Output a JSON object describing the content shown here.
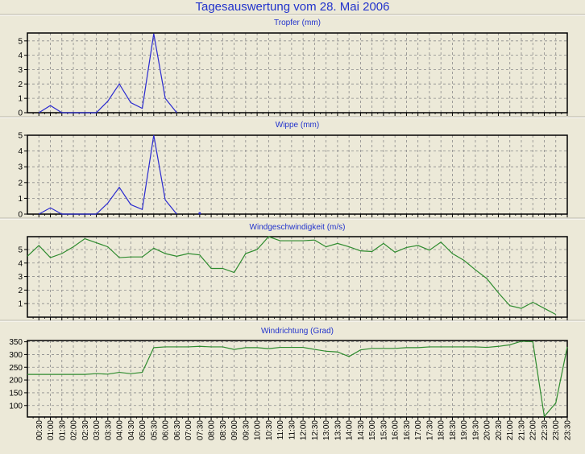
{
  "title": "Tagesauswertung vom 28. Mai 2006",
  "colors": {
    "background": "#ECE9D8",
    "title": "#2233cc",
    "rain": "#2a2ad0",
    "wind": "#2e8b2e",
    "grid": "#8a8a8a"
  },
  "chart_data": [
    {
      "type": "line",
      "title": "Tropfer (mm)",
      "ylim": [
        0,
        5.55
      ],
      "yticks": [
        0,
        1,
        2,
        3,
        4,
        5
      ],
      "grid": true,
      "x": [
        "00:00",
        "00:30",
        "01:00",
        "01:30",
        "02:00",
        "02:30",
        "03:00",
        "03:30",
        "04:00",
        "04:30",
        "05:00",
        "05:30",
        "06:00",
        "06:30",
        "07:00",
        "07:30",
        "08:00",
        "08:30",
        "09:00",
        "09:30",
        "10:00",
        "10:30",
        "11:00",
        "11:30",
        "12:00",
        "12:30",
        "13:00",
        "13:30",
        "14:00",
        "14:30",
        "15:00",
        "15:30",
        "16:00",
        "16:30",
        "17:00",
        "17:30",
        "18:00",
        "18:30",
        "19:00",
        "19:30",
        "20:00",
        "20:30",
        "21:00",
        "21:30",
        "22:00",
        "22:30",
        "23:00",
        "23:30"
      ],
      "values": [
        null,
        0,
        0.5,
        0,
        0,
        0,
        0,
        0.8,
        2.0,
        0.7,
        0.3,
        5.5,
        1.0,
        0,
        null,
        null,
        null,
        null,
        null,
        null,
        null,
        null,
        null,
        null,
        null,
        null,
        null,
        null,
        null,
        null,
        null,
        null,
        null,
        null,
        null,
        null,
        null,
        null,
        null,
        null,
        null,
        null,
        null,
        null,
        null,
        null,
        null,
        null
      ],
      "color": "#2a2ad0"
    },
    {
      "type": "line",
      "title": "Wippe (mm)",
      "ylim": [
        0,
        5
      ],
      "yticks": [
        0,
        1,
        2,
        3,
        4,
        5
      ],
      "grid": true,
      "values": [
        null,
        0,
        0.4,
        0,
        0,
        0,
        0,
        0.7,
        1.7,
        0.6,
        0.3,
        5.0,
        0.9,
        0,
        null,
        0.05,
        null,
        null,
        null,
        null,
        null,
        null,
        null,
        null,
        null,
        null,
        null,
        null,
        null,
        null,
        null,
        null,
        null,
        null,
        null,
        null,
        null,
        null,
        null,
        null,
        null,
        null,
        null,
        null,
        null,
        null,
        null,
        null
      ],
      "color": "#2a2ad0"
    },
    {
      "type": "line",
      "title": "Windgeschwindigkeit (m/s)",
      "ylim": [
        0,
        5.95
      ],
      "yticks": [
        1,
        2,
        3,
        4,
        5
      ],
      "grid": true,
      "values": [
        4.5,
        5.3,
        4.4,
        4.7,
        5.2,
        5.8,
        5.5,
        5.2,
        4.4,
        4.45,
        4.45,
        5.1,
        4.7,
        4.5,
        4.7,
        4.6,
        3.6,
        3.6,
        3.3,
        4.7,
        5.0,
        5.95,
        5.65,
        5.65,
        5.65,
        5.7,
        5.2,
        5.45,
        5.2,
        4.9,
        4.85,
        5.45,
        4.8,
        5.15,
        5.3,
        4.95,
        5.55,
        4.7,
        4.2,
        3.5,
        2.85,
        1.8,
        0.85,
        0.65,
        1.1,
        0.65,
        0.2,
        null
      ],
      "color": "#2e8b2e"
    },
    {
      "type": "line",
      "title": "Windrichtung (Grad)",
      "ylim": [
        55,
        355
      ],
      "yticks": [
        100,
        150,
        200,
        250,
        300,
        350
      ],
      "grid": true,
      "xlabels": [
        "00:30",
        "01:00",
        "01:30",
        "02:00",
        "02:30",
        "03:00",
        "03:30",
        "04:00",
        "04:30",
        "05:00",
        "05:30",
        "06:00",
        "06:30",
        "07:00",
        "07:30",
        "08:00",
        "08:30",
        "09:00",
        "09:30",
        "10:00",
        "10:30",
        "11:00",
        "11:30",
        "12:00",
        "12:30",
        "13:00",
        "13:30",
        "14:00",
        "14:30",
        "15:00",
        "15:30",
        "16:00",
        "16:30",
        "17:00",
        "17:30",
        "18:00",
        "18:30",
        "19:00",
        "19:30",
        "20:00",
        "20:30",
        "21:00",
        "21:30",
        "22:00",
        "22:30",
        "23:00",
        "23:30"
      ],
      "values": [
        222,
        222,
        222,
        222,
        222,
        222,
        225,
        223,
        230,
        225,
        230,
        327,
        330,
        330,
        330,
        332,
        330,
        330,
        320,
        327,
        327,
        323,
        328,
        328,
        328,
        320,
        313,
        310,
        292,
        318,
        324,
        324,
        324,
        327,
        327,
        330,
        330,
        330,
        330,
        330,
        328,
        332,
        338,
        352,
        350,
        57,
        110,
        330
      ],
      "color": "#2e8b2e"
    }
  ]
}
